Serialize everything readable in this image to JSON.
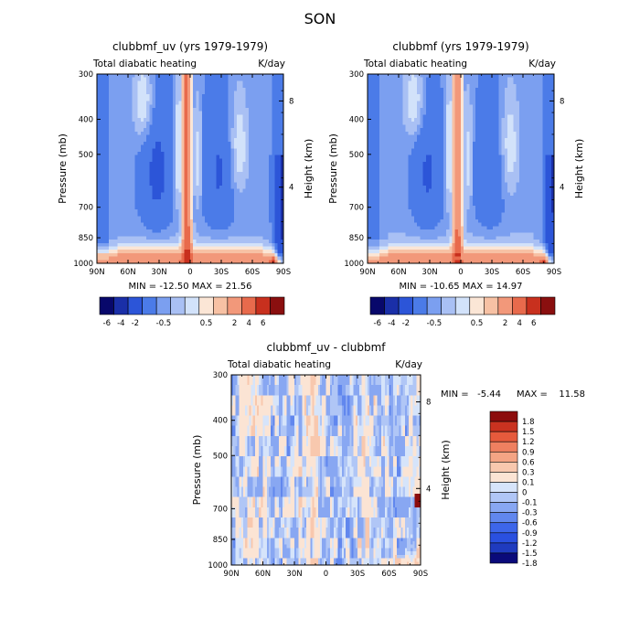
{
  "figure": {
    "title": "SON",
    "units": "K/day",
    "variable": "Total diabatic heating"
  },
  "chart_data": [
    {
      "type": "heatmap",
      "title": "clubbmf_uv (yrs 1979-1979)",
      "subtitle_left": "Total diabatic heating",
      "subtitle_right": "K/day",
      "xlabel": "",
      "ylabel": "Pressure (mb)",
      "ylabel_right": "Height (km)",
      "x_ticks": [
        "90N",
        "60N",
        "30N",
        "0",
        "30S",
        "60S",
        "90S"
      ],
      "y_ticks": [
        "300",
        "400",
        "500",
        "700",
        "850",
        "1000"
      ],
      "y_ticks_right": [
        "8",
        "4"
      ],
      "ylim": [
        1000,
        300
      ],
      "min": -12.5,
      "max": 21.56,
      "min_text": "MIN = -12.50",
      "max_text": "MAX = 21.56",
      "colorbar_labels": [
        "-6",
        "-4",
        "-2",
        "-0.5",
        "0.5",
        "2",
        "4",
        "6"
      ]
    },
    {
      "type": "heatmap",
      "title": "clubbmf (yrs 1979-1979)",
      "subtitle_left": "Total diabatic heating",
      "subtitle_right": "K/day",
      "xlabel": "",
      "ylabel": "Pressure (mb)",
      "ylabel_right": "Height (km)",
      "x_ticks": [
        "90N",
        "60N",
        "30N",
        "0",
        "30S",
        "60S",
        "90S"
      ],
      "y_ticks": [
        "300",
        "400",
        "500",
        "700",
        "850",
        "1000"
      ],
      "y_ticks_right": [
        "8",
        "4"
      ],
      "ylim": [
        1000,
        300
      ],
      "min": -10.65,
      "max": 14.97,
      "min_text": "MIN = -10.65",
      "max_text": "MAX = 14.97",
      "colorbar_labels": [
        "-6",
        "-4",
        "-2",
        "-0.5",
        "0.5",
        "2",
        "4",
        "6"
      ]
    },
    {
      "type": "heatmap",
      "title": "clubbmf_uv - clubbmf",
      "subtitle_left": "Total diabatic heating",
      "subtitle_right": "K/day",
      "xlabel": "",
      "ylabel": "Pressure (mb)",
      "ylabel_right": "Height (km)",
      "x_ticks": [
        "90N",
        "60N",
        "30N",
        "0",
        "30S",
        "60S",
        "90S"
      ],
      "y_ticks": [
        "300",
        "400",
        "500",
        "700",
        "850",
        "1000"
      ],
      "y_ticks_right": [
        "8",
        "4"
      ],
      "ylim": [
        1000,
        300
      ],
      "min": -5.44,
      "max": 11.58,
      "min_text": "MIN =",
      "min_value": "-5.44",
      "max_text": "MAX =",
      "max_value": "11.58",
      "colorbar_labels": [
        "1.8",
        "1.5",
        "1.2",
        "0.9",
        "0.6",
        "0.3",
        "0.1",
        "0",
        "-0.1",
        "-0.3",
        "-0.6",
        "-0.9",
        "-1.2",
        "-1.5",
        "-1.8"
      ]
    }
  ],
  "colors": {
    "scale": [
      "#08086b",
      "#1a2fa8",
      "#2c55d8",
      "#4b7be8",
      "#7b9ff0",
      "#a9c0f4",
      "#d2e2fa",
      "#fbe6d6",
      "#f7c1a4",
      "#f2987a",
      "#e86a4c",
      "#c8301e",
      "#8a0f0f"
    ],
    "diff_scale": [
      "#0a0a7a",
      "#1f3bbf",
      "#2a50e0",
      "#3d66ea",
      "#6187ee",
      "#88a7f2",
      "#b0c6f6",
      "#d6e4fa",
      "#fbe4d4",
      "#f8c8ae",
      "#f4a484",
      "#ef8060",
      "#e65a3c",
      "#c93220",
      "#8c0c0c"
    ]
  }
}
